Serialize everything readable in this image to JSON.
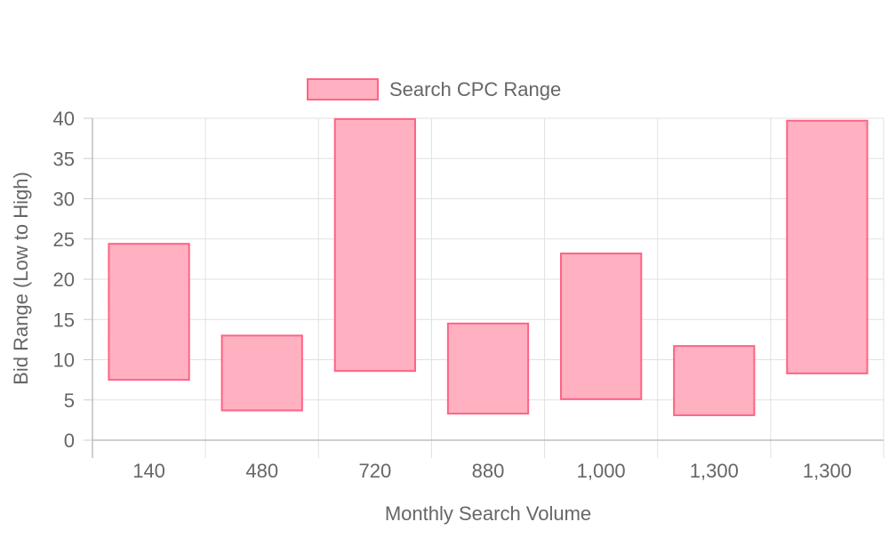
{
  "chart_data": {
    "type": "bar",
    "subtype": "floating-range",
    "categories": [
      "140",
      "480",
      "720",
      "880",
      "1,000",
      "1,300",
      "1,300"
    ],
    "series": [
      {
        "name": "Search CPC Range",
        "ranges": [
          [
            7.5,
            24.4
          ],
          [
            3.7,
            13.0
          ],
          [
            8.6,
            39.9
          ],
          [
            3.3,
            14.5
          ],
          [
            5.1,
            23.2
          ],
          [
            3.1,
            11.7
          ],
          [
            8.3,
            39.7
          ]
        ],
        "fill_color": "#ffb1c1",
        "border_color": "#ff6384"
      }
    ],
    "xlabel": "Monthly Search Volume",
    "ylabel": "Bid Range (Low to High)",
    "ylim": [
      0,
      40
    ],
    "yticks": [
      0,
      5,
      10,
      15,
      20,
      25,
      30,
      35,
      40
    ],
    "grid": true,
    "legend": "top-center"
  }
}
